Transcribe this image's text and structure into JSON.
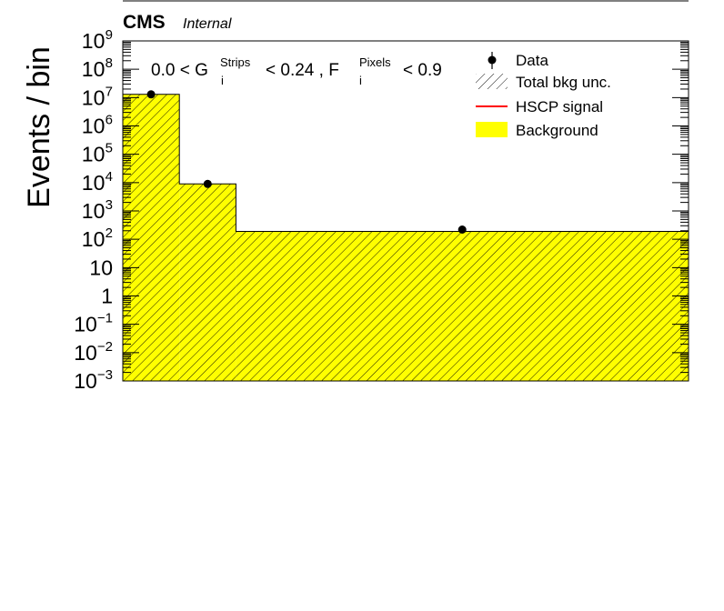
{
  "header": {
    "experiment": "CMS",
    "label": "Internal"
  },
  "selection": {
    "part1": "0.0 < G",
    "g_sup": "Strips",
    "g_sub": "i",
    "part2": "< 0.24 , F",
    "f_sup": "Pixels",
    "f_sub": "i",
    "part3": "< 0.9"
  },
  "chart_data": {
    "type": "bar",
    "ylabel": "Events / bin",
    "xlabel": "",
    "yscale": "log",
    "ylim": [
      0.001,
      1000000000
    ],
    "ytick_labels": [
      {
        "base": "10",
        "exp": "−3",
        "value": 0.001
      },
      {
        "base": "10",
        "exp": "−2",
        "value": 0.01
      },
      {
        "base": "10",
        "exp": "−1",
        "value": 0.1
      },
      {
        "base": "1",
        "exp": "",
        "value": 1
      },
      {
        "base": "10",
        "exp": "",
        "value": 10
      },
      {
        "base": "10",
        "exp": "2",
        "value": 100
      },
      {
        "base": "10",
        "exp": "3",
        "value": 1000
      },
      {
        "base": "10",
        "exp": "4",
        "value": 10000
      },
      {
        "base": "10",
        "exp": "5",
        "value": 100000
      },
      {
        "base": "10",
        "exp": "6",
        "value": 1000000
      },
      {
        "base": "10",
        "exp": "7",
        "value": 10000000
      },
      {
        "base": "10",
        "exp": "8",
        "value": 100000000
      },
      {
        "base": "10",
        "exp": "9",
        "value": 1000000000
      }
    ],
    "bin_edges_fraction": [
      0,
      0.1,
      0.2,
      1.0
    ],
    "background": [
      13000000,
      9000,
      190
    ],
    "data_points": [
      {
        "x_fraction": 0.05,
        "value": 13000000
      },
      {
        "x_fraction": 0.15,
        "value": 9000
      },
      {
        "x_fraction": 0.6,
        "value": 220
      }
    ],
    "legend": {
      "placement": "top-right",
      "entries": [
        {
          "label": "Data",
          "kind": "marker"
        },
        {
          "label": "Total bkg unc.",
          "kind": "hatch"
        },
        {
          "label": "HSCP signal",
          "kind": "line",
          "color": "#ff0000"
        },
        {
          "label": "Background",
          "kind": "fill",
          "color": "#ffff00"
        }
      ]
    },
    "colors": {
      "background_fill": "#ffff00",
      "signal_line": "#ff0000",
      "data_marker": "#000000"
    }
  }
}
